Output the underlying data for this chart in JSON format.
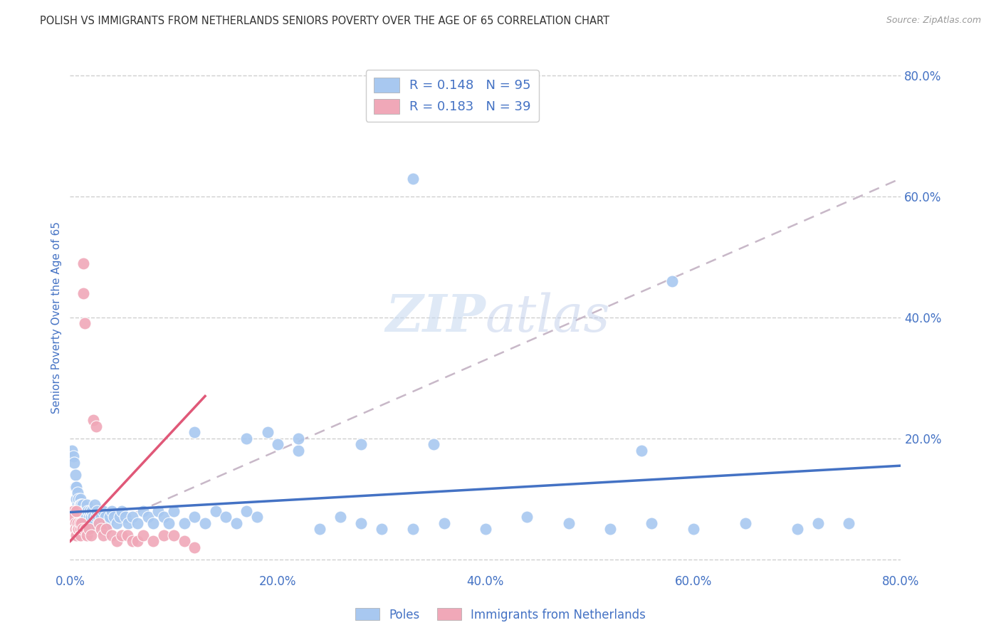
{
  "title": "POLISH VS IMMIGRANTS FROM NETHERLANDS SENIORS POVERTY OVER THE AGE OF 65 CORRELATION CHART",
  "source": "Source: ZipAtlas.com",
  "ylabel": "Seniors Poverty Over the Age of 65",
  "background_color": "#ffffff",
  "grid_color": "#d0d0d0",
  "title_color": "#333333",
  "axis_color": "#4472c4",
  "legend_label_1": "Poles",
  "legend_label_2": "Immigrants from Netherlands",
  "R1": 0.148,
  "N1": 95,
  "R2": 0.183,
  "N2": 39,
  "scatter_color_1": "#a8c8f0",
  "scatter_color_2": "#f0a8b8",
  "line_color_1": "#4472c4",
  "line_color_2": "#e05878",
  "trend_line_color": "#c8b8c8",
  "xlim": [
    0.0,
    0.8
  ],
  "ylim": [
    -0.02,
    0.82
  ],
  "blue_line_x": [
    0.0,
    0.8
  ],
  "blue_line_y": [
    0.078,
    0.155
  ],
  "pink_line_x": [
    0.0,
    0.13
  ],
  "pink_line_y": [
    0.03,
    0.27
  ],
  "dashed_line_x": [
    0.0,
    0.8
  ],
  "dashed_line_y": [
    0.03,
    0.63
  ],
  "poles_x": [
    0.002,
    0.003,
    0.004,
    0.005,
    0.005,
    0.006,
    0.006,
    0.007,
    0.007,
    0.008,
    0.008,
    0.009,
    0.009,
    0.01,
    0.01,
    0.01,
    0.011,
    0.011,
    0.012,
    0.012,
    0.013,
    0.013,
    0.014,
    0.014,
    0.015,
    0.015,
    0.016,
    0.017,
    0.018,
    0.019,
    0.02,
    0.021,
    0.022,
    0.023,
    0.024,
    0.025,
    0.026,
    0.027,
    0.028,
    0.03,
    0.032,
    0.034,
    0.036,
    0.038,
    0.04,
    0.042,
    0.045,
    0.048,
    0.05,
    0.053,
    0.056,
    0.06,
    0.065,
    0.07,
    0.075,
    0.08,
    0.085,
    0.09,
    0.095,
    0.1,
    0.11,
    0.12,
    0.13,
    0.14,
    0.15,
    0.16,
    0.17,
    0.18,
    0.19,
    0.2,
    0.22,
    0.24,
    0.26,
    0.28,
    0.3,
    0.33,
    0.36,
    0.4,
    0.44,
    0.48,
    0.52,
    0.56,
    0.6,
    0.65,
    0.7,
    0.75,
    0.58,
    0.33,
    0.28,
    0.22,
    0.17,
    0.12,
    0.35,
    0.55,
    0.72
  ],
  "poles_y": [
    0.18,
    0.17,
    0.16,
    0.14,
    0.12,
    0.12,
    0.1,
    0.11,
    0.09,
    0.1,
    0.08,
    0.09,
    0.08,
    0.1,
    0.09,
    0.08,
    0.09,
    0.07,
    0.08,
    0.09,
    0.08,
    0.07,
    0.08,
    0.06,
    0.08,
    0.07,
    0.09,
    0.08,
    0.07,
    0.08,
    0.07,
    0.08,
    0.07,
    0.06,
    0.09,
    0.07,
    0.08,
    0.07,
    0.06,
    0.07,
    0.08,
    0.07,
    0.06,
    0.07,
    0.08,
    0.07,
    0.06,
    0.07,
    0.08,
    0.07,
    0.06,
    0.07,
    0.06,
    0.08,
    0.07,
    0.06,
    0.08,
    0.07,
    0.06,
    0.08,
    0.06,
    0.07,
    0.06,
    0.08,
    0.07,
    0.06,
    0.08,
    0.07,
    0.21,
    0.19,
    0.18,
    0.05,
    0.07,
    0.06,
    0.05,
    0.05,
    0.06,
    0.05,
    0.07,
    0.06,
    0.05,
    0.06,
    0.05,
    0.06,
    0.05,
    0.06,
    0.46,
    0.63,
    0.19,
    0.2,
    0.2,
    0.21,
    0.19,
    0.18,
    0.06
  ],
  "neth_x": [
    0.003,
    0.004,
    0.005,
    0.005,
    0.006,
    0.006,
    0.007,
    0.007,
    0.008,
    0.009,
    0.01,
    0.01,
    0.011,
    0.012,
    0.013,
    0.013,
    0.014,
    0.015,
    0.016,
    0.018,
    0.02,
    0.022,
    0.025,
    0.028,
    0.03,
    0.032,
    0.035,
    0.04,
    0.045,
    0.05,
    0.055,
    0.06,
    0.065,
    0.07,
    0.08,
    0.09,
    0.1,
    0.11,
    0.12
  ],
  "neth_y": [
    0.08,
    0.07,
    0.06,
    0.05,
    0.08,
    0.04,
    0.05,
    0.06,
    0.05,
    0.06,
    0.05,
    0.04,
    0.06,
    0.05,
    0.49,
    0.44,
    0.39,
    0.05,
    0.04,
    0.05,
    0.04,
    0.23,
    0.22,
    0.06,
    0.05,
    0.04,
    0.05,
    0.04,
    0.03,
    0.04,
    0.04,
    0.03,
    0.03,
    0.04,
    0.03,
    0.04,
    0.04,
    0.03,
    0.02
  ]
}
